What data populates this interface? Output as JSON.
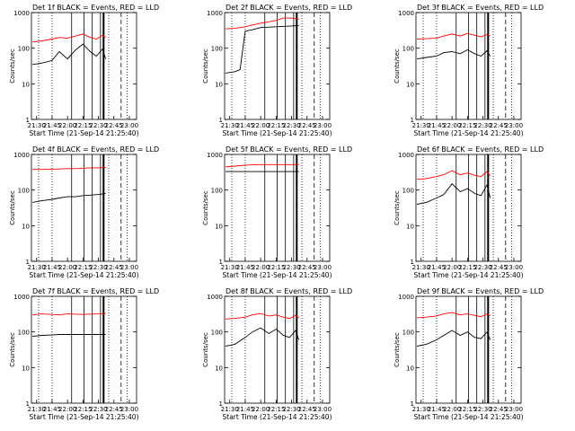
{
  "figure": {
    "x_axis_title": "Start Time (21-Sep-14 21:25:40)",
    "y_axis_title": "Counts/sec",
    "x_ticks": [
      "21:30",
      "21:45",
      "22:00",
      "22:15",
      "22:30",
      "22:45",
      "23:00"
    ],
    "y_ticks": [
      "1",
      "10",
      "100",
      "1000"
    ],
    "colors": {
      "events": "#000000",
      "lld": "#ff0000",
      "markers": "#000000"
    }
  },
  "chart_data": [
    {
      "type": "line",
      "title": "Det 1f BLACK = Events, RED = LLD",
      "xlabel": "Start Time (21-Sep-14 21:25:40)",
      "ylabel": "Counts/sec",
      "y_scale": "log",
      "ylim": [
        1,
        1000
      ],
      "xlim": [
        "21:25",
        "23:07"
      ],
      "series": [
        {
          "name": "Events",
          "color": "#000000",
          "x": [
            "21:26",
            "21:35",
            "21:45",
            "21:52",
            "22:00",
            "22:08",
            "22:15",
            "22:22",
            "22:28",
            "22:34",
            "22:37"
          ],
          "values": [
            35,
            38,
            45,
            80,
            50,
            90,
            130,
            80,
            60,
            95,
            50
          ]
        },
        {
          "name": "LLD",
          "color": "#ff0000",
          "x": [
            "21:26",
            "21:35",
            "21:45",
            "21:52",
            "22:00",
            "22:08",
            "22:15",
            "22:22",
            "22:28",
            "22:34",
            "22:37"
          ],
          "values": [
            150,
            160,
            180,
            200,
            190,
            220,
            250,
            200,
            180,
            230,
            200
          ]
        }
      ]
    },
    {
      "type": "line",
      "title": "Det 2f BLACK = Events, RED = LLD",
      "xlabel": "Start Time (21-Sep-14 21:25:40)",
      "ylabel": "Counts/sec",
      "y_scale": "log",
      "ylim": [
        1,
        1000
      ],
      "xlim": [
        "21:25",
        "23:07"
      ],
      "series": [
        {
          "name": "Events",
          "color": "#000000",
          "x": [
            "21:26",
            "21:35",
            "21:40",
            "21:45",
            "21:52",
            "22:00",
            "22:15",
            "22:30",
            "22:37"
          ],
          "values": [
            20,
            22,
            25,
            300,
            330,
            380,
            400,
            420,
            430
          ]
        },
        {
          "name": "LLD",
          "color": "#ff0000",
          "x": [
            "21:26",
            "21:35",
            "21:45",
            "21:52",
            "22:00",
            "22:15",
            "22:22",
            "22:30",
            "22:37"
          ],
          "values": [
            350,
            360,
            400,
            450,
            500,
            600,
            700,
            700,
            650
          ]
        }
      ]
    },
    {
      "type": "line",
      "title": "Det 3f BLACK = Events, RED = LLD",
      "xlabel": "Start Time (21-Sep-14 21:25:40)",
      "ylabel": "Counts/sec",
      "y_scale": "log",
      "ylim": [
        1,
        1000
      ],
      "xlim": [
        "21:25",
        "23:07"
      ],
      "series": [
        {
          "name": "Events",
          "color": "#000000",
          "x": [
            "21:26",
            "21:35",
            "21:45",
            "21:52",
            "22:00",
            "22:08",
            "22:15",
            "22:22",
            "22:28",
            "22:34",
            "22:37"
          ],
          "values": [
            50,
            55,
            60,
            75,
            80,
            70,
            90,
            70,
            60,
            85,
            60
          ]
        },
        {
          "name": "LLD",
          "color": "#ff0000",
          "x": [
            "21:26",
            "21:35",
            "21:45",
            "21:52",
            "22:00",
            "22:08",
            "22:15",
            "22:22",
            "22:28",
            "22:34",
            "22:37"
          ],
          "values": [
            180,
            185,
            190,
            220,
            250,
            220,
            260,
            230,
            210,
            240,
            220
          ]
        }
      ]
    },
    {
      "type": "line",
      "title": "Det 4f BLACK = Events, RED = LLD",
      "xlabel": "Start Time (21-Sep-14 21:25:40)",
      "ylabel": "Counts/sec",
      "y_scale": "log",
      "ylim": [
        1,
        1000
      ],
      "xlim": [
        "21:25",
        "23:07"
      ],
      "series": [
        {
          "name": "Events",
          "color": "#000000",
          "x": [
            "21:26",
            "21:35",
            "21:45",
            "21:52",
            "22:00",
            "22:08",
            "22:15",
            "22:22",
            "22:30",
            "22:37"
          ],
          "values": [
            45,
            50,
            55,
            60,
            65,
            65,
            70,
            72,
            75,
            80
          ]
        },
        {
          "name": "LLD",
          "color": "#ff0000",
          "x": [
            "21:26",
            "21:35",
            "21:45",
            "21:52",
            "22:00",
            "22:08",
            "22:15",
            "22:22",
            "22:30",
            "22:37"
          ],
          "values": [
            380,
            380,
            385,
            390,
            400,
            400,
            410,
            420,
            420,
            430
          ]
        }
      ]
    },
    {
      "type": "line",
      "title": "Det 5f BLACK = Events, RED = LLD",
      "xlabel": "Start Time (21-Sep-14 21:25:40)",
      "ylabel": "Counts/sec",
      "y_scale": "log",
      "ylim": [
        1,
        1000
      ],
      "xlim": [
        "21:25",
        "23:07"
      ],
      "series": [
        {
          "name": "Events",
          "color": "#000000",
          "x": [
            "21:26",
            "21:45",
            "22:00",
            "22:15",
            "22:30",
            "22:37"
          ],
          "values": [
            330,
            330,
            330,
            330,
            330,
            330
          ]
        },
        {
          "name": "LLD",
          "color": "#ff0000",
          "x": [
            "21:26",
            "21:35",
            "21:45",
            "21:52",
            "22:00",
            "22:15",
            "22:30",
            "22:37"
          ],
          "values": [
            450,
            470,
            500,
            510,
            520,
            520,
            520,
            520
          ]
        }
      ]
    },
    {
      "type": "line",
      "title": "Det 6f BLACK = Events, RED = LLD",
      "xlabel": "Start Time (21-Sep-14 21:25:40)",
      "ylabel": "Counts/sec",
      "y_scale": "log",
      "ylim": [
        1,
        1000
      ],
      "xlim": [
        "21:25",
        "23:07"
      ],
      "series": [
        {
          "name": "Events",
          "color": "#000000",
          "x": [
            "21:26",
            "21:35",
            "21:45",
            "21:52",
            "22:00",
            "22:08",
            "22:15",
            "22:22",
            "22:28",
            "22:34",
            "22:37"
          ],
          "values": [
            40,
            45,
            60,
            75,
            150,
            90,
            110,
            80,
            70,
            140,
            60
          ]
        },
        {
          "name": "LLD",
          "color": "#ff0000",
          "x": [
            "21:26",
            "21:35",
            "21:45",
            "21:52",
            "22:00",
            "22:08",
            "22:15",
            "22:22",
            "22:28",
            "22:34",
            "22:37"
          ],
          "values": [
            200,
            210,
            240,
            270,
            350,
            270,
            300,
            260,
            240,
            330,
            250
          ]
        }
      ]
    },
    {
      "type": "line",
      "title": "Det 7f BLACK = Events, RED = LLD",
      "xlabel": "Start Time (21-Sep-14 21:25:40)",
      "ylabel": "Counts/sec",
      "y_scale": "log",
      "ylim": [
        1,
        1000
      ],
      "xlim": [
        "21:25",
        "23:07"
      ],
      "series": [
        {
          "name": "Events",
          "color": "#000000",
          "x": [
            "21:26",
            "21:35",
            "21:45",
            "21:52",
            "22:00",
            "22:15",
            "22:30",
            "22:37"
          ],
          "values": [
            75,
            80,
            82,
            85,
            85,
            85,
            85,
            85
          ]
        },
        {
          "name": "LLD",
          "color": "#ff0000",
          "x": [
            "21:26",
            "21:35",
            "21:45",
            "21:52",
            "22:00",
            "22:15",
            "22:30",
            "22:37"
          ],
          "values": [
            300,
            320,
            310,
            300,
            320,
            310,
            320,
            330
          ]
        }
      ]
    },
    {
      "type": "line",
      "title": "Det 8f BLACK = Events, RED = LLD",
      "xlabel": "Start Time (21-Sep-14 21:25:40)",
      "ylabel": "Counts/sec",
      "y_scale": "log",
      "ylim": [
        1,
        1000
      ],
      "xlim": [
        "21:25",
        "23:07"
      ],
      "series": [
        {
          "name": "Events",
          "color": "#000000",
          "x": [
            "21:26",
            "21:35",
            "21:45",
            "21:52",
            "22:00",
            "22:08",
            "22:15",
            "22:22",
            "22:28",
            "22:34",
            "22:37"
          ],
          "values": [
            40,
            45,
            70,
            100,
            130,
            90,
            120,
            80,
            70,
            110,
            60
          ]
        },
        {
          "name": "LLD",
          "color": "#ff0000",
          "x": [
            "21:26",
            "21:35",
            "21:45",
            "21:52",
            "22:00",
            "22:08",
            "22:15",
            "22:22",
            "22:28",
            "22:34",
            "22:37"
          ],
          "values": [
            230,
            240,
            260,
            300,
            330,
            280,
            300,
            260,
            240,
            290,
            250
          ]
        }
      ]
    },
    {
      "type": "line",
      "title": "Det 9f BLACK = Events, RED = LLD",
      "xlabel": "Start Time (21-Sep-14 21:25:40)",
      "ylabel": "Counts/sec",
      "y_scale": "log",
      "ylim": [
        1,
        1000
      ],
      "xlim": [
        "21:25",
        "23:07"
      ],
      "series": [
        {
          "name": "Events",
          "color": "#000000",
          "x": [
            "21:26",
            "21:35",
            "21:45",
            "21:52",
            "22:00",
            "22:08",
            "22:15",
            "22:22",
            "22:28",
            "22:34",
            "22:37"
          ],
          "values": [
            40,
            45,
            60,
            80,
            110,
            80,
            100,
            70,
            65,
            100,
            60
          ]
        },
        {
          "name": "LLD",
          "color": "#ff0000",
          "x": [
            "21:26",
            "21:35",
            "21:45",
            "21:52",
            "22:00",
            "22:08",
            "22:15",
            "22:22",
            "22:28",
            "22:34",
            "22:37"
          ],
          "values": [
            250,
            260,
            280,
            320,
            350,
            300,
            320,
            290,
            270,
            320,
            280
          ]
        }
      ]
    }
  ]
}
